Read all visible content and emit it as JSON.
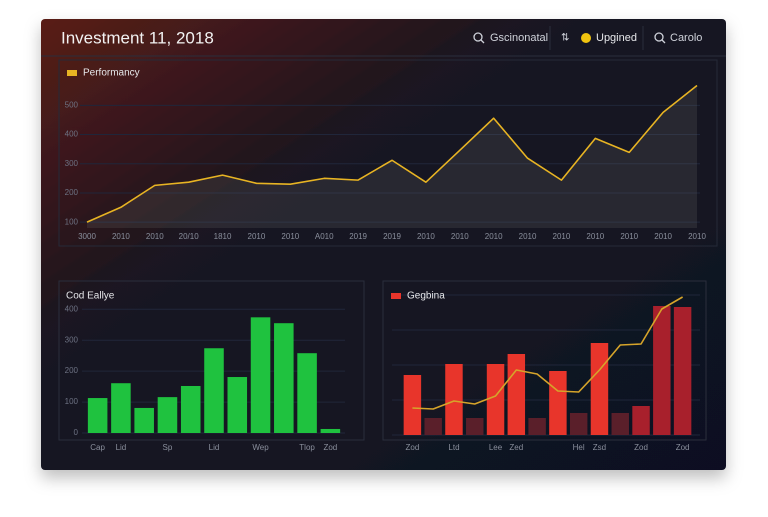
{
  "header": {
    "title": "Investment 11, 2018",
    "items": [
      "Gscinonatal",
      "Upgined",
      "Carolo"
    ]
  },
  "chart_data": [
    {
      "type": "line",
      "categories": [
        "3000",
        "2010",
        "2010",
        "20/10",
        "1810",
        "2010",
        "2010",
        "A010",
        "2019",
        "2019",
        "2010",
        "2010",
        "2010",
        "2010",
        "2010",
        "2010",
        "2010",
        "2010",
        "2010"
      ],
      "series": [
        {
          "name": "Performancy",
          "color": "#e8b423",
          "values": [
            100,
            151,
            226,
            237,
            261,
            233,
            230,
            250,
            244,
            312,
            237,
            346,
            456,
            319,
            244,
            387,
            339,
            476,
            568
          ]
        }
      ],
      "ylim": [
        80,
        580
      ],
      "yticks": [
        100,
        200,
        300,
        400,
        500
      ],
      "grid": true
    },
    {
      "type": "bar",
      "categories": [
        "Cap",
        "Lid",
        null,
        "Sp",
        null,
        "Lid",
        null,
        "Wep",
        null,
        "Tlop",
        "Zod"
      ],
      "series": [
        {
          "name": "Cod Eallye",
          "color": "#1fc23f",
          "values": [
            113,
            161,
            81,
            116,
            152,
            274,
            181,
            374,
            355,
            258,
            13
          ]
        }
      ],
      "ylim": [
        0,
        430
      ],
      "yticks": [
        0,
        100,
        200,
        300,
        400
      ],
      "grid": true
    },
    {
      "type": "bar_line",
      "categories": [
        "Zod",
        null,
        "Ltd",
        null,
        "Lee",
        "Zed",
        null,
        null,
        "Hel",
        "Zsd",
        null,
        "Zod",
        null,
        "Zod"
      ],
      "series": [
        {
          "name": "Gegbina",
          "color": "#e8352b",
          "colors": [
            "#e8352b",
            "#5a1f2a",
            "#e8352b",
            "#5a1f2a",
            "#e8352b",
            "#e8352b",
            "#5a1f2a",
            "#e8352b",
            "#5a1f2a",
            "#e8352b",
            "#5a1f2a",
            "#a8202c",
            "#a8202c",
            "#a8202c"
          ],
          "values": [
            60,
            17,
            71,
            17,
            71,
            81,
            17,
            64,
            22,
            92,
            22,
            29,
            129,
            128
          ]
        },
        {
          "type": "line",
          "color": "#d6a42a",
          "values": [
            27,
            26,
            34,
            31,
            39,
            65,
            61,
            44,
            43,
            65,
            90,
            91,
            126,
            138
          ]
        }
      ],
      "ylim": [
        0,
        140
      ],
      "grid": true
    }
  ]
}
